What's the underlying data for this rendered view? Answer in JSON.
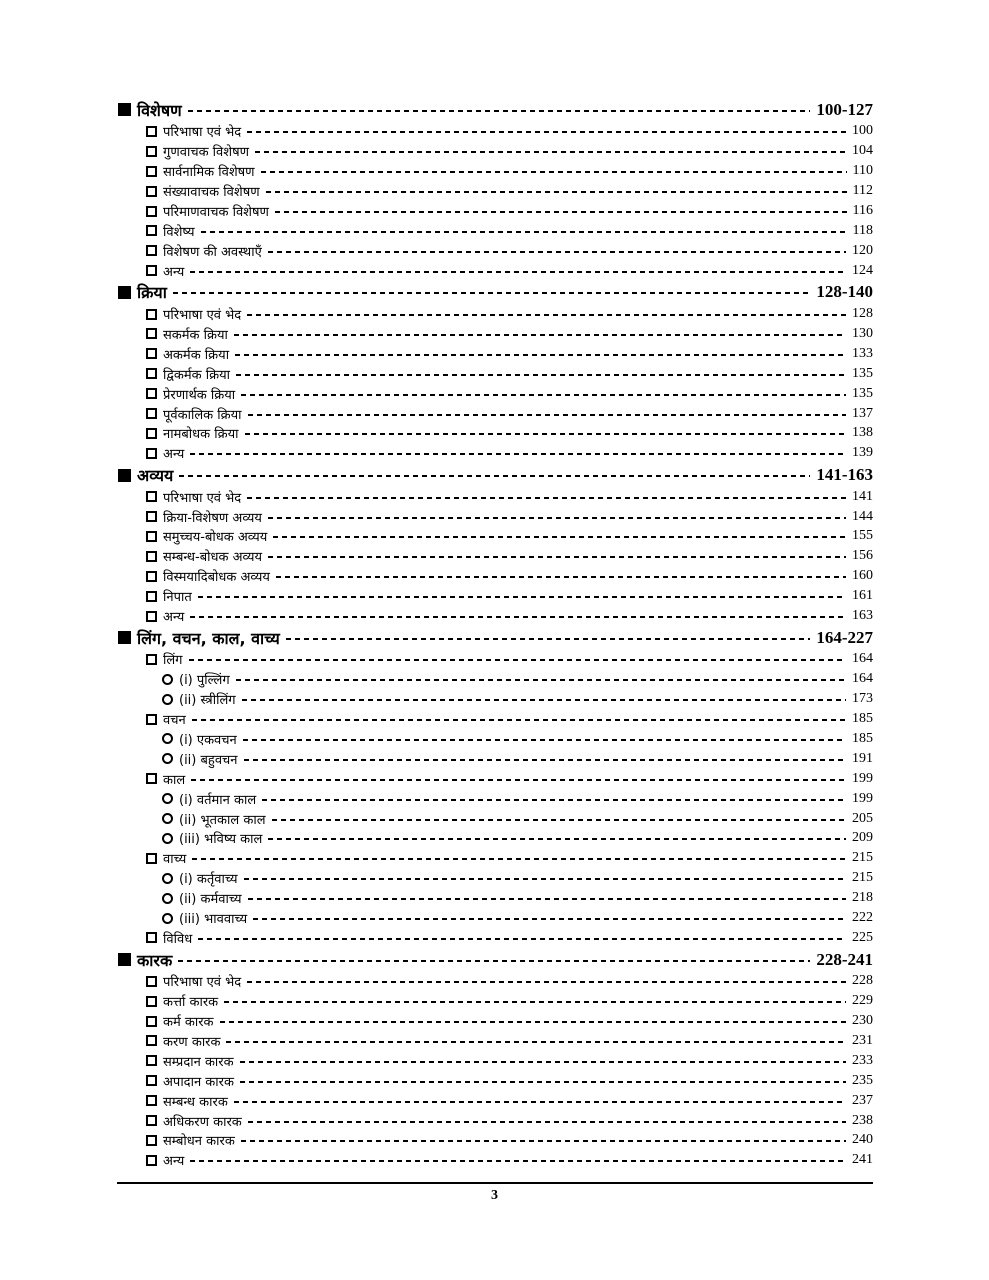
{
  "sections": [
    {
      "title": "विशेषण",
      "pages": "100-127",
      "items": [
        {
          "label": "परिभाषा एवं भेद",
          "page": "100"
        },
        {
          "label": "गुणवाचक विशेषण",
          "page": "104"
        },
        {
          "label": "सार्वनामिक विशेषण",
          "page": "110"
        },
        {
          "label": "संख्यावाचक विशेषण",
          "page": "112"
        },
        {
          "label": "परिमाणवाचक विशेषण",
          "page": "116"
        },
        {
          "label": "विशेष्य",
          "page": "118"
        },
        {
          "label": "विशेषण की अवस्थाएँ",
          "page": "120"
        },
        {
          "label": "अन्य",
          "page": "124"
        }
      ]
    },
    {
      "title": "क्रिया",
      "pages": "128-140",
      "items": [
        {
          "label": "परिभाषा एवं भेद",
          "page": "128"
        },
        {
          "label": "सकर्मक क्रिया",
          "page": "130"
        },
        {
          "label": "अकर्मक क्रिया",
          "page": "133"
        },
        {
          "label": "द्विकर्मक क्रिया",
          "page": "135"
        },
        {
          "label": "प्रेरणार्थक क्रिया",
          "page": "135"
        },
        {
          "label": "पूर्वकालिक क्रिया",
          "page": "137"
        },
        {
          "label": "नामबोधक क्रिया",
          "page": "138"
        },
        {
          "label": "अन्य",
          "page": "139"
        }
      ]
    },
    {
      "title": "अव्यय",
      "pages": "141-163",
      "items": [
        {
          "label": "परिभाषा एवं भेद",
          "page": "141"
        },
        {
          "label": "क्रिया-विशेषण अव्यय",
          "page": "144"
        },
        {
          "label": "समुच्चय-बोधक अव्यय",
          "page": "155"
        },
        {
          "label": "सम्बन्ध-बोधक अव्यय",
          "page": "156"
        },
        {
          "label": "विस्मयादिबोधक अव्यय",
          "page": "160"
        },
        {
          "label": "निपात",
          "page": "161"
        },
        {
          "label": "अन्य",
          "page": "163"
        }
      ]
    },
    {
      "title": "लिंग, वचन, काल, वाच्य",
      "pages": "164-227",
      "items": [
        {
          "label": "लिंग",
          "page": "164",
          "sub": [
            {
              "label": "(i) पुल्लिंग",
              "page": "164"
            },
            {
              "label": "(ii) स्त्रीलिंग",
              "page": "173"
            }
          ]
        },
        {
          "label": "वचन",
          "page": "185",
          "sub": [
            {
              "label": "(i) एकवचन",
              "page": "185"
            },
            {
              "label": "(ii) बहुवचन",
              "page": "191"
            }
          ]
        },
        {
          "label": "काल",
          "page": "199",
          "sub": [
            {
              "label": "(i) वर्तमान काल",
              "page": "199"
            },
            {
              "label": "(ii) भूतकाल काल",
              "page": "205"
            },
            {
              "label": "(iii) भविष्य काल",
              "page": "209"
            }
          ]
        },
        {
          "label": "वाच्य",
          "page": "215",
          "sub": [
            {
              "label": "(i) कर्तृवाच्य",
              "page": "215"
            },
            {
              "label": "(ii) कर्मवाच्य",
              "page": "218"
            },
            {
              "label": "(iii) भाववाच्य",
              "page": "222"
            }
          ]
        },
        {
          "label": "विविध",
          "page": "225"
        }
      ]
    },
    {
      "title": "कारक",
      "pages": "228-241",
      "items": [
        {
          "label": "परिभाषा एवं भेद",
          "page": "228"
        },
        {
          "label": "कर्त्ता कारक",
          "page": "229"
        },
        {
          "label": "कर्म कारक",
          "page": "230"
        },
        {
          "label": "करण कारक",
          "page": "231"
        },
        {
          "label": "सम्प्रदान कारक",
          "page": "233"
        },
        {
          "label": "अपादान कारक",
          "page": "235"
        },
        {
          "label": "सम्बन्ध कारक",
          "page": "237"
        },
        {
          "label": "अधिकरण कारक",
          "page": "238"
        },
        {
          "label": "सम्बोधन कारक",
          "page": "240"
        },
        {
          "label": "अन्य",
          "page": "241"
        }
      ]
    }
  ],
  "page_number": "3"
}
